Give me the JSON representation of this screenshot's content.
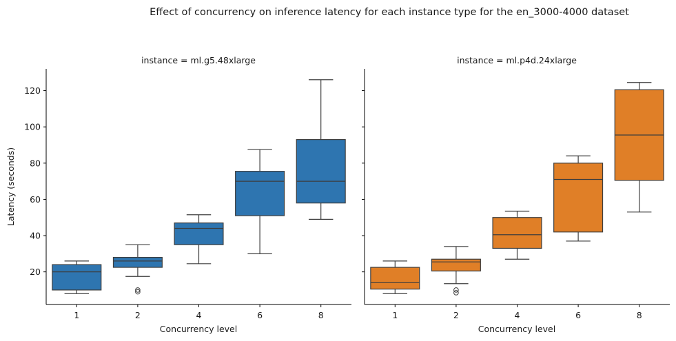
{
  "figure": {
    "title": "Effect of concurrency on inference latency for each instance type for the en_3000-4000 dataset",
    "ylabel": "Latency (seconds)"
  },
  "chart_data": [
    {
      "type": "box",
      "panel_title": "instance = ml.g5.48xlarge",
      "xlabel": "Concurrency level",
      "ylabel": "Latency (seconds)",
      "categories": [
        "1",
        "2",
        "4",
        "6",
        "8"
      ],
      "ylim": [
        2,
        132
      ],
      "yticks": [
        20,
        40,
        60,
        80,
        100,
        120
      ],
      "color": "#2e75b0",
      "boxes": [
        {
          "category": "1",
          "whisker_low": 8,
          "q1": 10,
          "median": 20,
          "q3": 24,
          "whisker_high": 26,
          "outliers": []
        },
        {
          "category": "2",
          "whisker_low": 17.5,
          "q1": 22.5,
          "median": 26,
          "q3": 28,
          "whisker_high": 35,
          "outliers": [
            9,
            10
          ]
        },
        {
          "category": "4",
          "whisker_low": 24.5,
          "q1": 35,
          "median": 44,
          "q3": 47,
          "whisker_high": 51.5,
          "outliers": []
        },
        {
          "category": "6",
          "whisker_low": 30,
          "q1": 51,
          "median": 70,
          "q3": 75.5,
          "whisker_high": 87.5,
          "outliers": []
        },
        {
          "category": "8",
          "whisker_low": 49,
          "q1": 58,
          "median": 70,
          "q3": 93,
          "whisker_high": 126,
          "outliers": []
        }
      ]
    },
    {
      "type": "box",
      "panel_title": "instance = ml.p4d.24xlarge",
      "xlabel": "Concurrency level",
      "ylabel": "",
      "categories": [
        "1",
        "2",
        "4",
        "6",
        "8"
      ],
      "ylim": [
        2,
        132
      ],
      "yticks": [
        20,
        40,
        60,
        80,
        100,
        120
      ],
      "color": "#e07f27",
      "boxes": [
        {
          "category": "1",
          "whisker_low": 8,
          "q1": 10.5,
          "median": 14,
          "q3": 22.5,
          "whisker_high": 26,
          "outliers": []
        },
        {
          "category": "2",
          "whisker_low": 13.5,
          "q1": 20.5,
          "median": 25.5,
          "q3": 27,
          "whisker_high": 34,
          "outliers": [
            8.5,
            10
          ]
        },
        {
          "category": "4",
          "whisker_low": 27,
          "q1": 33,
          "median": 40.5,
          "q3": 50,
          "whisker_high": 53.5,
          "outliers": []
        },
        {
          "category": "6",
          "whisker_low": 37,
          "q1": 42,
          "median": 71,
          "q3": 80,
          "whisker_high": 84,
          "outliers": []
        },
        {
          "category": "8",
          "whisker_low": 53,
          "q1": 70.5,
          "median": 95.5,
          "q3": 120.5,
          "whisker_high": 124.5,
          "outliers": []
        }
      ]
    }
  ]
}
